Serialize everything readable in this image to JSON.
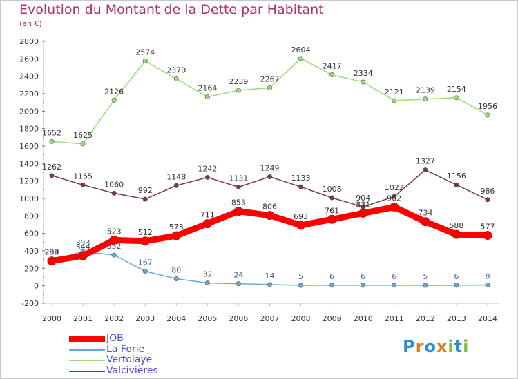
{
  "title": "Evolution du Montant de la Dette par Habitant",
  "subtitle": "(en €)",
  "logo": {
    "text": "Proxiti",
    "letters": [
      {
        "ch": "P",
        "color": "#2a8fd6"
      },
      {
        "ch": "r",
        "color": "#e07a1f"
      },
      {
        "ch": "o",
        "color": "#2a8fd6"
      },
      {
        "ch": "x",
        "color": "#e07a1f"
      },
      {
        "ch": "i",
        "color": "#7bbf3a"
      },
      {
        "ch": "t",
        "color": "#2a8fd6"
      },
      {
        "ch": "i",
        "color": "#7bbf3a"
      }
    ]
  },
  "chart_data": {
    "type": "line",
    "title": "Evolution du Montant de la Dette par Habitant",
    "subtitle": "(en €)",
    "xlabel": "",
    "ylabel": "",
    "ylim": [
      -200,
      2800
    ],
    "yticks": [
      -200,
      0,
      200,
      400,
      600,
      800,
      1000,
      1200,
      1400,
      1600,
      1800,
      2000,
      2200,
      2400,
      2600,
      2800
    ],
    "categories": [
      "2000",
      "2001",
      "2002",
      "2003",
      "2004",
      "2005",
      "2006",
      "2007",
      "2008",
      "2009",
      "2010",
      "2011",
      "2012",
      "2013",
      "2014"
    ],
    "grid": false,
    "legend_position": "bottom-left",
    "series": [
      {
        "name": "JOB",
        "color": "#ff0000",
        "bold": true,
        "values": [
          284,
          344,
          523,
          512,
          573,
          711,
          853,
          806,
          693,
          761,
          831,
          902,
          734,
          588,
          577
        ],
        "labels": [
          "284",
          "344",
          "523",
          "512",
          "573",
          "711",
          "853",
          "806",
          "693",
          "761",
          "831",
          "902",
          "734",
          "588",
          "577"
        ]
      },
      {
        "name": "La Forie",
        "color": "#6aa7d8",
        "bold": false,
        "values": [
          290,
          393,
          352,
          167,
          80,
          32,
          24,
          14,
          5,
          6,
          6,
          6,
          5,
          6,
          8
        ],
        "labels": [
          "290",
          "393",
          "352",
          "167",
          "80",
          "32",
          "24",
          "14",
          "5",
          "6",
          "6",
          "6",
          "5",
          "6",
          "8"
        ]
      },
      {
        "name": "Vertolaye",
        "color": "#99dd77",
        "bold": false,
        "values": [
          1652,
          1625,
          2126,
          2574,
          2370,
          2164,
          2239,
          2267,
          2604,
          2417,
          2334,
          2121,
          2139,
          2154,
          1956
        ],
        "labels": [
          "1652",
          "1625",
          "2126",
          "2574",
          "2370",
          "2164",
          "2239",
          "2267",
          "2604",
          "2417",
          "2334",
          "2121",
          "2139",
          "2154",
          "1956"
        ]
      },
      {
        "name": "Valcivières",
        "color": "#7a3b3b",
        "bold": false,
        "values": [
          1262,
          1155,
          1060,
          992,
          1148,
          1242,
          1131,
          1249,
          1133,
          1008,
          904,
          1022,
          1327,
          1156,
          986
        ],
        "labels": [
          "1262",
          "1155",
          "1060",
          "992",
          "1148",
          "1242",
          "1131",
          "1249",
          "1133",
          "1008",
          "904",
          "1022",
          "1327",
          "1156",
          "986"
        ]
      }
    ]
  }
}
